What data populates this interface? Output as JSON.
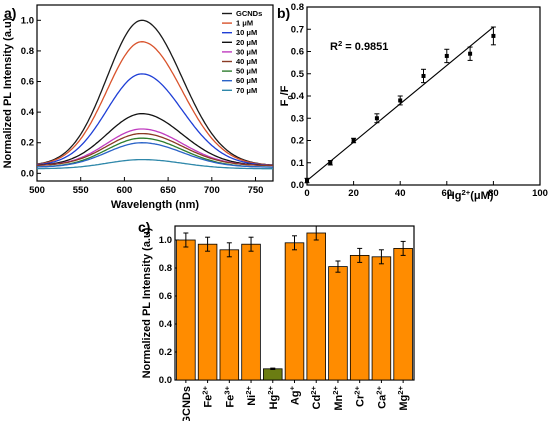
{
  "chart_data": [
    {
      "panel": "a)",
      "type": "line",
      "xlabel": "Wavelength (nm)",
      "ylabel": "Normalized PL Intensity (a.u)",
      "xlim": [
        500,
        770
      ],
      "ylim": [
        -0.05,
        1.1
      ],
      "xticks": [
        "500",
        "550",
        "600",
        "650",
        "700",
        "750"
      ],
      "yticks": [
        "0.0",
        "0.2",
        "0.4",
        "0.6",
        "0.8",
        "1.0"
      ],
      "peak_wavelength": 620,
      "legend_position": "top-right",
      "series": [
        {
          "name": "GCNDs",
          "peak": 1.0,
          "edge": 0.05,
          "color": "#1a1a1a"
        },
        {
          "name": "1 μM",
          "peak": 0.86,
          "edge": 0.05,
          "color": "#d9532c"
        },
        {
          "name": "10 μM",
          "peak": 0.65,
          "edge": 0.05,
          "color": "#1f3fd6"
        },
        {
          "name": "20 μM",
          "peak": 0.39,
          "edge": 0.05,
          "color": "#111111"
        },
        {
          "name": "30 μM",
          "peak": 0.29,
          "edge": 0.05,
          "color": "#c03cc0"
        },
        {
          "name": "40 μM",
          "peak": 0.26,
          "edge": 0.05,
          "color": "#8a3a24"
        },
        {
          "name": "50 μM",
          "peak": 0.23,
          "edge": 0.04,
          "color": "#2e7d2e"
        },
        {
          "name": "60 μM",
          "peak": 0.2,
          "edge": 0.04,
          "color": "#2a63c8"
        },
        {
          "name": "70 μM",
          "peak": 0.09,
          "edge": 0.03,
          "color": "#2f88aa"
        }
      ]
    },
    {
      "panel": "b)",
      "type": "scatter",
      "xlabel": "Hg2+(μM)",
      "xlabel_base": "Hg",
      "xlabel_sup": "2+",
      "xlabel_unit": "(μM)",
      "ylabel": "F0/F",
      "ylabel_main": "F",
      "ylabel_sub": "0",
      "ylabel_rest": "/F",
      "xlim": [
        0,
        100
      ],
      "ylim": [
        0,
        0.8
      ],
      "xticks": [
        "0",
        "20",
        "40",
        "60",
        "80",
        "100"
      ],
      "yticks": [
        "0.0",
        "0.1",
        "0.2",
        "0.3",
        "0.4",
        "0.5",
        "0.6",
        "0.7",
        "0.8"
      ],
      "annotation": "R2 = 0.9851",
      "annotation_main": "R",
      "annotation_sup": "2",
      "annotation_rest": " = 0.9851",
      "x": [
        0,
        10,
        20,
        30,
        40,
        50,
        60,
        70,
        80
      ],
      "y": [
        0.02,
        0.1,
        0.2,
        0.3,
        0.38,
        0.49,
        0.58,
        0.59,
        0.67
      ],
      "err": [
        0.01,
        0.01,
        0.01,
        0.02,
        0.02,
        0.03,
        0.03,
        0.03,
        0.04
      ],
      "fit": {
        "x": [
          0,
          80
        ],
        "y": [
          0.02,
          0.71
        ]
      }
    },
    {
      "panel": "c)",
      "type": "bar",
      "ylabel": "Normalized PL Intensity (a.u)",
      "ylim": [
        0,
        1.1
      ],
      "yticks": [
        "0.0",
        "0.2",
        "0.4",
        "0.6",
        "0.8",
        "1.0"
      ],
      "categories": [
        {
          "base": "GCNDs",
          "sup": ""
        },
        {
          "base": "Fe",
          "sup": "2+"
        },
        {
          "base": "Fe",
          "sup": "3+"
        },
        {
          "base": "Ni",
          "sup": "2+"
        },
        {
          "base": "Hg",
          "sup": "2+"
        },
        {
          "base": "Ag",
          "sup": "+"
        },
        {
          "base": "Cd",
          "sup": "2+"
        },
        {
          "base": "Mn",
          "sup": "2+"
        },
        {
          "base": "Cr",
          "sup": "2+"
        },
        {
          "base": "Ca",
          "sup": "2+"
        },
        {
          "base": "Mg",
          "sup": "2+"
        }
      ],
      "values": [
        1.0,
        0.97,
        0.93,
        0.97,
        0.08,
        0.98,
        1.05,
        0.81,
        0.89,
        0.88,
        0.94
      ],
      "errors": [
        0.05,
        0.05,
        0.05,
        0.05,
        0.005,
        0.05,
        0.05,
        0.04,
        0.05,
        0.05,
        0.05
      ],
      "bar_color": "#ff8c00",
      "highlight_color": "#6b7d12",
      "highlight_index": 4
    }
  ]
}
